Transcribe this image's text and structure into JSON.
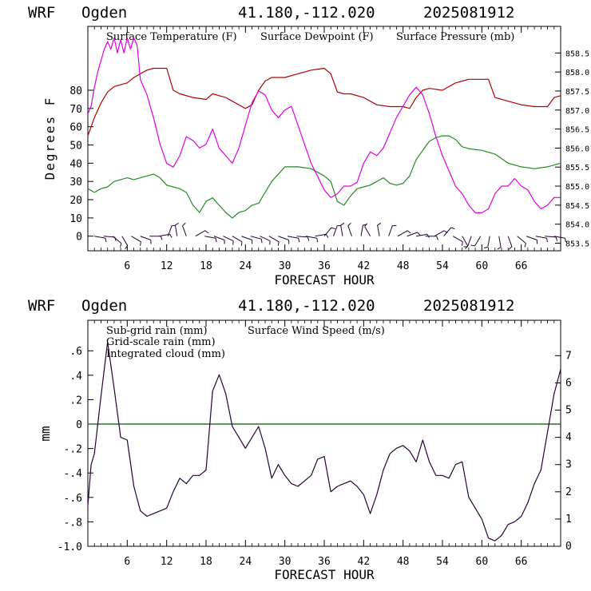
{
  "colors": {
    "temperature": "#b00000",
    "dewpoint": "#228b22",
    "pressure": "#e000e0",
    "subgrid": "#b00000",
    "gridscale": "#228b22",
    "cloud": "#1e88b4",
    "wind": "#2a0038",
    "barb": "#2a0038",
    "axis": "#000000"
  },
  "panels": [
    {
      "header": {
        "model": "WRF",
        "site": "Ogden",
        "coords": "41.180,-112.020",
        "run": "2025081912"
      },
      "ylabel": "Degrees F",
      "xlabel": "FORECAST HOUR",
      "x_ticks": [
        "6",
        "12",
        "18",
        "24",
        "30",
        "36",
        "42",
        "48",
        "54",
        "60",
        "66"
      ],
      "y_ticks": [
        "0",
        "10",
        "20",
        "30",
        "40",
        "50",
        "60",
        "70",
        "80"
      ],
      "y2_ticks": [
        "853.5",
        "854.0",
        "854.5",
        "855.0",
        "855.5",
        "856.0",
        "856.5",
        "857.0",
        "857.5",
        "858.0",
        "858.5"
      ],
      "legend": [
        {
          "label": "Surface Temperature (F)",
          "color": "#b00000"
        },
        {
          "label": "Surface Dewpoint (F)",
          "color": "#228b22"
        },
        {
          "label": "Surface Pressure (mb)",
          "color": "#e000e0"
        }
      ]
    },
    {
      "header": {
        "model": "WRF",
        "site": "Ogden",
        "coords": "41.180,-112.020",
        "run": "2025081912"
      },
      "ylabel": "mm",
      "xlabel": "FORECAST HOUR",
      "x_ticks": [
        "6",
        "12",
        "18",
        "24",
        "30",
        "36",
        "42",
        "48",
        "54",
        "60",
        "66"
      ],
      "y_ticks": [
        "-1.0",
        "-.8",
        "-.6",
        "-.4",
        "-.2",
        "0",
        ".2",
        ".4",
        ".6"
      ],
      "y2_ticks": [
        "0",
        "1",
        "2",
        "3",
        "4",
        "5",
        "6",
        "7"
      ],
      "legend": [
        {
          "label": "Sub-grid rain (mm)",
          "color": "#b00000"
        },
        {
          "label": "Surface Wind Speed (m/s)",
          "color": "#2a0038"
        },
        {
          "label": "Grid-scale rain (mm)",
          "color": "#228b22"
        },
        {
          "label": "Integrated cloud (mm)",
          "color": "#1e88b4"
        }
      ]
    }
  ],
  "chart_data": [
    {
      "type": "line",
      "xlabel": "FORECAST HOUR",
      "ylabel": "Degrees F",
      "xlim": [
        0,
        72
      ],
      "ylim": [
        -8,
        115
      ],
      "y2lim": [
        853.3,
        859.2
      ],
      "grid": false,
      "legend_position": "top",
      "series": [
        {
          "name": "Surface Temperature (F)",
          "axis": "left",
          "x": [
            0,
            1,
            2,
            3,
            4,
            5,
            6,
            7,
            8,
            9,
            10,
            11,
            12,
            13,
            14,
            16,
            18,
            19,
            20,
            21,
            22,
            24,
            25,
            26,
            27,
            28,
            30,
            32,
            34,
            36,
            37,
            38,
            39,
            40,
            42,
            44,
            46,
            48,
            49,
            50,
            51,
            52,
            54,
            55,
            56,
            57,
            58,
            60,
            61,
            62,
            64,
            66,
            68,
            70,
            71,
            72
          ],
          "y": [
            55,
            65,
            73,
            79,
            82,
            83,
            84,
            87,
            89,
            91,
            92,
            92,
            92,
            80,
            78,
            76,
            75,
            78,
            77,
            76,
            74,
            70,
            72,
            80,
            85,
            87,
            87,
            89,
            91,
            92,
            89,
            79,
            78,
            78,
            76,
            72,
            71,
            71,
            70,
            76,
            80,
            81,
            80,
            82,
            84,
            85,
            86,
            86,
            86,
            76,
            74,
            72,
            71,
            71,
            76,
            77
          ]
        },
        {
          "name": "Surface Dewpoint (F)",
          "axis": "left",
          "x": [
            0,
            1,
            2,
            3,
            4,
            5,
            6,
            7,
            8,
            9,
            10,
            11,
            12,
            13,
            14,
            15,
            16,
            17,
            18,
            19,
            20,
            21,
            22,
            23,
            24,
            25,
            26,
            27,
            28,
            30,
            32,
            34,
            36,
            37,
            38,
            39,
            40,
            41,
            42,
            43,
            44,
            45,
            46,
            47,
            48,
            49,
            50,
            51,
            52,
            53,
            54,
            55,
            56,
            57,
            58,
            60,
            62,
            64,
            66,
            68,
            70,
            72
          ],
          "y": [
            26,
            24,
            26,
            27,
            30,
            31,
            32,
            31,
            32,
            33,
            34,
            32,
            28,
            27,
            26,
            24,
            17,
            13,
            19,
            21,
            17,
            13,
            10,
            13,
            14,
            17,
            18,
            24,
            30,
            38,
            38,
            37,
            33,
            30,
            19,
            17,
            22,
            26,
            27,
            28,
            30,
            32,
            29,
            28,
            29,
            33,
            42,
            47,
            52,
            54,
            55,
            55,
            53,
            49,
            48,
            47,
            45,
            40,
            38,
            37,
            38,
            40
          ]
        },
        {
          "name": "Surface Pressure (mb)",
          "axis": "right",
          "x": [
            0,
            0.5,
            1,
            1.5,
            2,
            2.5,
            3,
            3.5,
            4,
            4.5,
            5,
            5.5,
            6,
            6.5,
            7,
            7.5,
            8,
            9,
            10,
            11,
            12,
            13,
            14,
            15,
            16,
            17,
            18,
            19,
            20,
            21,
            22,
            23,
            24,
            25,
            26,
            27,
            28,
            29,
            30,
            31,
            32,
            34,
            36,
            37,
            38,
            39,
            40,
            41,
            42,
            43,
            44,
            45,
            46,
            47,
            48,
            49,
            50,
            51,
            52,
            53,
            54,
            55,
            56,
            57,
            58,
            59,
            60,
            61,
            62,
            63,
            64,
            65,
            66,
            67,
            68,
            69,
            70,
            71,
            72
          ],
          "y": [
            856.9,
            857.1,
            857.6,
            858.0,
            858.3,
            858.6,
            858.8,
            858.6,
            858.9,
            858.5,
            858.85,
            858.5,
            858.9,
            858.6,
            858.9,
            858.7,
            857.8,
            857.4,
            856.8,
            856.1,
            855.6,
            855.5,
            855.8,
            856.3,
            856.2,
            856.0,
            856.1,
            856.5,
            856.0,
            855.8,
            855.6,
            856.0,
            856.6,
            857.2,
            857.5,
            857.4,
            857.0,
            856.8,
            857.0,
            857.1,
            856.6,
            855.6,
            854.9,
            854.7,
            854.8,
            855.0,
            855.0,
            855.1,
            855.6,
            855.9,
            855.8,
            856.0,
            856.4,
            856.8,
            857.1,
            857.4,
            857.6,
            857.4,
            856.9,
            856.3,
            855.8,
            855.4,
            855.0,
            854.8,
            854.5,
            854.3,
            854.3,
            854.4,
            854.8,
            855.0,
            855.0,
            855.2,
            855.0,
            854.9,
            854.6,
            854.4,
            854.5,
            854.7,
            854.7
          ]
        }
      ]
    },
    {
      "type": "line",
      "xlabel": "FORECAST HOUR",
      "ylabel": "mm",
      "xlim": [
        0,
        72
      ],
      "ylim": [
        -1.0,
        0.85
      ],
      "y2lim": [
        0,
        8.3
      ],
      "grid": false,
      "legend_position": "top-left",
      "series": [
        {
          "name": "Integrated cloud (mm)",
          "axis": "left",
          "x": [
            0,
            72
          ],
          "y": [
            0,
            0
          ]
        },
        {
          "name": "Sub-grid rain (mm)",
          "axis": "left",
          "x": [
            0,
            72
          ],
          "y": [
            0,
            0
          ]
        },
        {
          "name": "Grid-scale rain (mm)",
          "axis": "left",
          "x": [
            0,
            72
          ],
          "y": [
            0,
            0
          ]
        },
        {
          "name": "Surface Wind Speed (m/s)",
          "axis": "right",
          "x": [
            0,
            0.5,
            1,
            2,
            3,
            4,
            5,
            6,
            7,
            8,
            9,
            10,
            11,
            12,
            13,
            14,
            15,
            16,
            17,
            18,
            19,
            20,
            21,
            22,
            23,
            24,
            25,
            26,
            27,
            28,
            29,
            30,
            31,
            32,
            34,
            35,
            36,
            37,
            38,
            39,
            40,
            41,
            42,
            43,
            44,
            45,
            46,
            47,
            48,
            49,
            50,
            51,
            52,
            53,
            54,
            55,
            56,
            57,
            58,
            60,
            61,
            62,
            63,
            64,
            65,
            66,
            67,
            68,
            69,
            70,
            71,
            72
          ],
          "y": [
            1.5,
            3.0,
            3.4,
            5.5,
            7.5,
            5.8,
            4.0,
            3.9,
            2.2,
            1.3,
            1.1,
            1.2,
            1.3,
            1.4,
            2.0,
            2.5,
            2.3,
            2.6,
            2.6,
            2.8,
            5.7,
            6.3,
            5.6,
            4.4,
            4.0,
            3.6,
            4.0,
            4.4,
            3.6,
            2.5,
            3.0,
            2.6,
            2.3,
            2.2,
            2.6,
            3.2,
            3.3,
            2.0,
            2.2,
            2.3,
            2.4,
            2.2,
            1.9,
            1.2,
            1.9,
            2.8,
            3.4,
            3.6,
            3.7,
            3.5,
            3.1,
            3.9,
            3.1,
            2.6,
            2.6,
            2.5,
            3.0,
            3.1,
            1.8,
            1.0,
            0.3,
            0.2,
            0.4,
            0.8,
            0.9,
            1.1,
            1.6,
            2.3,
            2.8,
            4.2,
            5.6,
            6.5
          ]
        }
      ]
    }
  ]
}
